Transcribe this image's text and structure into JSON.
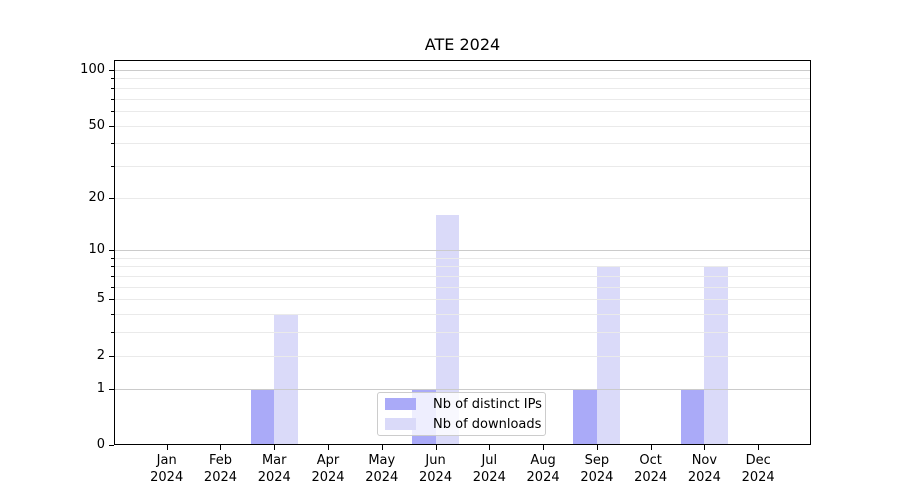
{
  "chart_data": {
    "type": "bar",
    "title": "ATE 2024",
    "categories": [
      "Jan",
      "Feb",
      "Mar",
      "Apr",
      "May",
      "Jun",
      "Jul",
      "Aug",
      "Sep",
      "Oct",
      "Nov",
      "Dec"
    ],
    "category_year": "2024",
    "series": [
      {
        "name": "Nb of distinct IPs",
        "color": "#aaaaf8",
        "values": [
          0,
          0,
          1,
          0,
          0,
          1,
          0,
          0,
          1,
          0,
          1,
          0
        ]
      },
      {
        "name": "Nb of downloads",
        "color": "#dadaf9",
        "values": [
          0,
          0,
          4,
          0,
          0,
          16,
          0,
          0,
          8,
          0,
          8,
          0
        ]
      }
    ],
    "y_scale": "log1p",
    "ylim": [
      0,
      113
    ],
    "y_axis_ticks": [
      0,
      1,
      2,
      5,
      10,
      20,
      50,
      100
    ],
    "y_major_gridlines": [
      1,
      10,
      100
    ],
    "y_minor_gridlines": [
      2,
      3,
      4,
      5,
      6,
      7,
      8,
      9,
      20,
      30,
      40,
      50,
      60,
      70,
      80,
      90
    ],
    "grid": true,
    "legend_position": "lower center"
  },
  "colors": {
    "grid_minor": "#eaeaea",
    "grid_major": "#cbcbcb",
    "axis": "#000000",
    "legend_border": "#cccccc"
  }
}
